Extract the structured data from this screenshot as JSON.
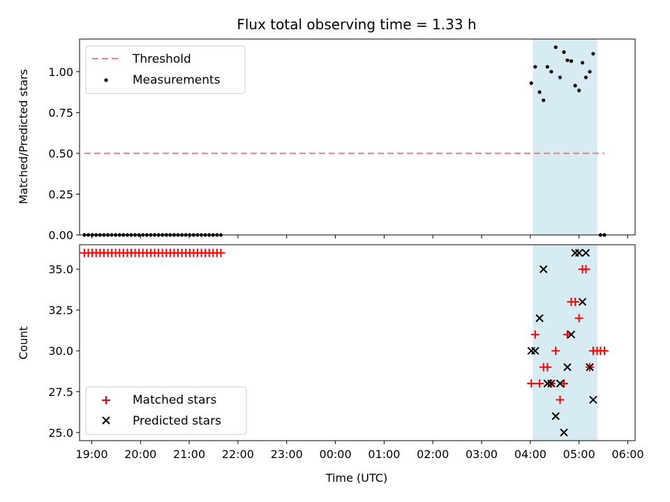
{
  "figure": {
    "title": "Flux total observing time = 1.33 h",
    "xlabel": "Time (UTC)"
  },
  "colors": {
    "threshold": "#f08080",
    "measurement": "#000000",
    "matched": "#ff0000",
    "predicted": "#000000",
    "span": "#add8e6"
  },
  "chart_data": [
    {
      "type": "scatter",
      "ylabel": "Matched/Predicted stars",
      "xlim": [
        -0.25,
        11.15
      ],
      "ylim": [
        0,
        1.2
      ],
      "x_ticks": [
        0,
        1,
        2,
        3,
        4,
        5,
        6,
        7,
        8,
        9,
        10,
        11
      ],
      "y_ticks": [
        0.0,
        0.25,
        0.5,
        0.75,
        1.0
      ],
      "y_tick_labels": [
        "0.00",
        "0.25",
        "0.50",
        "0.75",
        "1.00"
      ],
      "legend": {
        "placement": "top-left",
        "entries": [
          {
            "label": "Threshold",
            "kind": "dashed-line"
          },
          {
            "label": "Measurements",
            "kind": "dot"
          }
        ]
      },
      "shaded_span": {
        "x_start": 9.05,
        "x_end": 10.38
      },
      "threshold": {
        "x_start": -0.15,
        "x_end": 10.52,
        "y": 0.5
      },
      "series": [
        {
          "name": "Measurements",
          "points": [
            [
              -0.15,
              0
            ],
            [
              -0.07,
              0
            ],
            [
              0.01,
              0
            ],
            [
              0.09,
              0
            ],
            [
              0.17,
              0
            ],
            [
              0.25,
              0
            ],
            [
              0.33,
              0
            ],
            [
              0.41,
              0
            ],
            [
              0.49,
              0
            ],
            [
              0.57,
              0
            ],
            [
              0.65,
              0
            ],
            [
              0.73,
              0
            ],
            [
              0.81,
              0
            ],
            [
              0.89,
              0
            ],
            [
              0.97,
              0
            ],
            [
              1.05,
              0
            ],
            [
              1.13,
              0
            ],
            [
              1.21,
              0
            ],
            [
              1.29,
              0
            ],
            [
              1.37,
              0
            ],
            [
              1.45,
              0
            ],
            [
              1.53,
              0
            ],
            [
              1.61,
              0
            ],
            [
              1.69,
              0
            ],
            [
              1.77,
              0
            ],
            [
              1.85,
              0
            ],
            [
              1.93,
              0
            ],
            [
              2.01,
              0
            ],
            [
              2.09,
              0
            ],
            [
              2.17,
              0
            ],
            [
              2.25,
              0
            ],
            [
              2.33,
              0
            ],
            [
              2.41,
              0
            ],
            [
              2.49,
              0
            ],
            [
              2.57,
              0
            ],
            [
              2.65,
              0
            ],
            [
              9.02,
              0.93
            ],
            [
              9.1,
              1.03
            ],
            [
              9.19,
              0.875
            ],
            [
              9.27,
              0.825
            ],
            [
              9.35,
              1.03
            ],
            [
              9.43,
              1.0
            ],
            [
              9.52,
              1.15
            ],
            [
              9.61,
              0.965
            ],
            [
              9.69,
              1.12
            ],
            [
              9.76,
              1.07
            ],
            [
              9.84,
              1.065
            ],
            [
              9.92,
              0.915
            ],
            [
              10.0,
              0.885
            ],
            [
              10.07,
              1.055
            ],
            [
              10.14,
              0.965
            ],
            [
              10.22,
              1.0
            ],
            [
              10.29,
              1.11
            ],
            [
              10.44,
              0
            ],
            [
              10.52,
              0
            ]
          ]
        }
      ]
    },
    {
      "type": "scatter",
      "ylabel": "Count",
      "xlim": [
        -0.25,
        11.15
      ],
      "ylim": [
        24.5,
        36.5
      ],
      "x_ticks": [
        0,
        1,
        2,
        3,
        4,
        5,
        6,
        7,
        8,
        9,
        10,
        11
      ],
      "x_tick_labels": [
        "19:00",
        "20:00",
        "21:00",
        "22:00",
        "23:00",
        "00:00",
        "01:00",
        "02:00",
        "03:00",
        "04:00",
        "05:00",
        "06:00"
      ],
      "y_ticks": [
        25.0,
        27.5,
        30.0,
        32.5,
        35.0
      ],
      "y_tick_labels": [
        "25.0",
        "27.5",
        "30.0",
        "32.5",
        "35.0"
      ],
      "legend": {
        "placement": "bottom-left",
        "entries": [
          {
            "label": "Matched stars",
            "kind": "plus"
          },
          {
            "label": "Predicted stars",
            "kind": "cross"
          }
        ]
      },
      "shaded_span": {
        "x_start": 9.05,
        "x_end": 10.38
      },
      "series": [
        {
          "name": "Matched stars",
          "points": [
            [
              -0.15,
              36
            ],
            [
              -0.07,
              36
            ],
            [
              0.01,
              36
            ],
            [
              0.09,
              36
            ],
            [
              0.17,
              36
            ],
            [
              0.25,
              36
            ],
            [
              0.33,
              36
            ],
            [
              0.41,
              36
            ],
            [
              0.49,
              36
            ],
            [
              0.57,
              36
            ],
            [
              0.65,
              36
            ],
            [
              0.73,
              36
            ],
            [
              0.81,
              36
            ],
            [
              0.89,
              36
            ],
            [
              0.97,
              36
            ],
            [
              1.05,
              36
            ],
            [
              1.13,
              36
            ],
            [
              1.21,
              36
            ],
            [
              1.29,
              36
            ],
            [
              1.37,
              36
            ],
            [
              1.45,
              36
            ],
            [
              1.53,
              36
            ],
            [
              1.61,
              36
            ],
            [
              1.69,
              36
            ],
            [
              1.77,
              36
            ],
            [
              1.85,
              36
            ],
            [
              1.93,
              36
            ],
            [
              2.01,
              36
            ],
            [
              2.09,
              36
            ],
            [
              2.17,
              36
            ],
            [
              2.25,
              36
            ],
            [
              2.33,
              36
            ],
            [
              2.41,
              36
            ],
            [
              2.49,
              36
            ],
            [
              2.57,
              36
            ],
            [
              2.65,
              36
            ],
            [
              9.02,
              28
            ],
            [
              9.1,
              31
            ],
            [
              9.19,
              28
            ],
            [
              9.27,
              29
            ],
            [
              9.35,
              29
            ],
            [
              9.43,
              28
            ],
            [
              9.52,
              30
            ],
            [
              9.61,
              27
            ],
            [
              9.69,
              28
            ],
            [
              9.76,
              31
            ],
            [
              9.84,
              33
            ],
            [
              9.92,
              33
            ],
            [
              10.0,
              32
            ],
            [
              10.07,
              35
            ],
            [
              10.14,
              35
            ],
            [
              10.22,
              29
            ],
            [
              10.29,
              30
            ],
            [
              10.37,
              30
            ],
            [
              10.44,
              30
            ],
            [
              10.52,
              30
            ]
          ]
        },
        {
          "name": "Predicted stars",
          "points": [
            [
              9.02,
              30
            ],
            [
              9.1,
              30
            ],
            [
              9.19,
              32
            ],
            [
              9.27,
              35
            ],
            [
              9.35,
              28
            ],
            [
              9.43,
              28
            ],
            [
              9.52,
              26
            ],
            [
              9.61,
              28
            ],
            [
              9.69,
              25
            ],
            [
              9.76,
              29
            ],
            [
              9.84,
              31
            ],
            [
              9.92,
              36
            ],
            [
              10.0,
              36
            ],
            [
              10.07,
              33
            ],
            [
              10.14,
              36
            ],
            [
              10.22,
              29
            ],
            [
              10.29,
              27
            ]
          ]
        }
      ]
    }
  ]
}
